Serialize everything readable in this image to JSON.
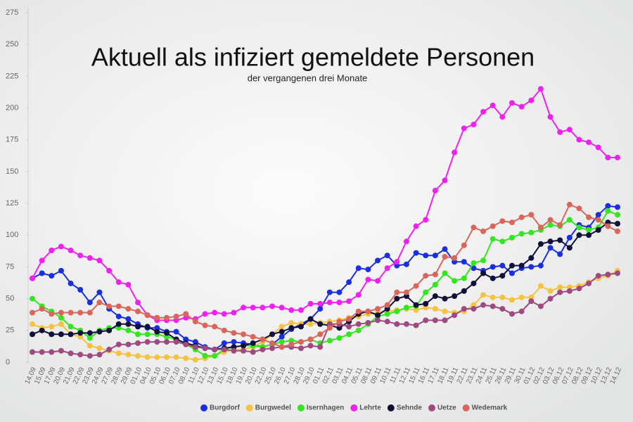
{
  "chart_data": {
    "type": "line",
    "title": "Aktuell als infiziert gemeldete Personen",
    "subtitle": "der vergangenen drei Monate",
    "categories": [
      "14.09",
      "15.09",
      "17.09",
      "20.09",
      "21.09",
      "22.09",
      "23.09",
      "24.09",
      "27.09",
      "28.09",
      "29.09",
      "01.10",
      "04.10",
      "05.10",
      "06.10",
      "07.10",
      "08.10",
      "11.10",
      "12.10",
      "13.10",
      "15.10",
      "18.10",
      "19.10",
      "20.10",
      "22.10",
      "25.10",
      "26.10",
      "27.10",
      "28.10",
      "29.10",
      "01.11",
      "02.11",
      "03.11",
      "04.11",
      "05.11",
      "08.11",
      "09.11",
      "10.11",
      "11.11",
      "12.11",
      "15.11",
      "16.11",
      "17.11",
      "18.11",
      "19.11",
      "22.11",
      "23.11",
      "24.11",
      "25.11",
      "26.11",
      "29.11",
      "30.11",
      "01.12",
      "02.12",
      "03.12",
      "06.12",
      "07.12",
      "08.12",
      "09.12",
      "10.12",
      "13.12",
      "14.12"
    ],
    "series": [
      {
        "name": "Burgdorf",
        "color": "#1a2fe0",
        "values": [
          66,
          70,
          68,
          72,
          62,
          57,
          47,
          55,
          42,
          36,
          34,
          30,
          27,
          27,
          24,
          24,
          18,
          16,
          12,
          10,
          15,
          16,
          15,
          14,
          12,
          14,
          20,
          26,
          30,
          34,
          42,
          55,
          55,
          63,
          74,
          73,
          80,
          84,
          76,
          77,
          86,
          84,
          84,
          89,
          79,
          79,
          74,
          72,
          75,
          76,
          70,
          74,
          75,
          76,
          90,
          85,
          98,
          108,
          106,
          116,
          123,
          122
        ]
      },
      {
        "name": "Burgwedel",
        "color": "#f5c242",
        "values": [
          30,
          27,
          28,
          30,
          22,
          20,
          13,
          11,
          9,
          7,
          6,
          5,
          4,
          4,
          4,
          4,
          3,
          2,
          3,
          5,
          8,
          10,
          10,
          12,
          16,
          22,
          28,
          31,
          30,
          30,
          31,
          32,
          33,
          35,
          36,
          38,
          39,
          40,
          41,
          42,
          41,
          43,
          42,
          40,
          39,
          40,
          45,
          53,
          51,
          51,
          49,
          51,
          51,
          60,
          56,
          59,
          59,
          60,
          63,
          66,
          68,
          72
        ]
      },
      {
        "name": "Isernhagen",
        "color": "#33e61f",
        "values": [
          50,
          44,
          40,
          35,
          28,
          25,
          19,
          25,
          27,
          27,
          25,
          22,
          22,
          22,
          20,
          18,
          14,
          10,
          5,
          5,
          10,
          12,
          13,
          13,
          12,
          14,
          16,
          17,
          16,
          18,
          15,
          17,
          19,
          22,
          25,
          30,
          36,
          38,
          40,
          43,
          44,
          55,
          61,
          70,
          64,
          66,
          78,
          80,
          97,
          95,
          98,
          101,
          102,
          104,
          108,
          107,
          112,
          106,
          104,
          106,
          119,
          116
        ]
      },
      {
        "name": "Lehrte",
        "color": "#f020f0",
        "values": [
          66,
          80,
          88,
          91,
          88,
          84,
          82,
          80,
          72,
          63,
          61,
          47,
          37,
          33,
          33,
          33,
          35,
          34,
          38,
          39,
          38,
          39,
          43,
          43,
          43,
          44,
          43,
          41,
          41,
          46,
          46,
          47,
          47,
          48,
          53,
          65,
          64,
          74,
          79,
          95,
          107,
          112,
          135,
          143,
          165,
          184,
          187,
          197,
          202,
          193,
          204,
          201,
          206,
          215,
          193,
          181,
          183,
          175,
          173,
          169,
          161,
          161
        ]
      },
      {
        "name": "Sehnde",
        "color": "#10103a",
        "values": [
          22,
          25,
          22,
          22,
          22,
          23,
          23,
          24,
          25,
          30,
          30,
          28,
          28,
          24,
          23,
          18,
          15,
          13,
          11,
          10,
          11,
          12,
          13,
          15,
          18,
          22,
          24,
          27,
          28,
          34,
          30,
          29,
          27,
          32,
          38,
          40,
          37,
          42,
          50,
          52,
          45,
          46,
          52,
          50,
          52,
          56,
          62,
          70,
          66,
          68,
          76,
          76,
          82,
          93,
          95,
          96,
          90,
          100,
          100,
          104,
          110,
          109
        ]
      },
      {
        "name": "Uetze",
        "color": "#9e4a80",
        "values": [
          8,
          8,
          8,
          9,
          7,
          6,
          5,
          6,
          10,
          14,
          14,
          15,
          16,
          16,
          16,
          16,
          14,
          12,
          11,
          10,
          10,
          9,
          9,
          8,
          10,
          11,
          12,
          12,
          11,
          13,
          12,
          30,
          30,
          28,
          30,
          31,
          33,
          32,
          30,
          30,
          29,
          33,
          33,
          33,
          37,
          42,
          42,
          45,
          44,
          42,
          38,
          40,
          48,
          44,
          50,
          55,
          56,
          58,
          62,
          68,
          69,
          70
        ]
      },
      {
        "name": "Wedemark",
        "color": "#d9665a",
        "values": [
          39,
          42,
          38,
          39,
          39,
          39,
          39,
          47,
          44,
          44,
          42,
          40,
          37,
          35,
          35,
          36,
          38,
          32,
          29,
          28,
          25,
          23,
          22,
          20,
          18,
          15,
          12,
          14,
          16,
          18,
          22,
          27,
          32,
          34,
          40,
          40,
          42,
          45,
          55,
          55,
          60,
          68,
          69,
          83,
          82,
          92,
          106,
          103,
          107,
          111,
          110,
          114,
          116,
          106,
          112,
          108,
          124,
          121,
          114,
          112,
          107,
          103
        ]
      }
    ],
    "ylim": [
      0,
      275
    ],
    "yticks": [
      0,
      25,
      50,
      75,
      100,
      125,
      150,
      175,
      200,
      225,
      250,
      275
    ],
    "grid": false,
    "legend": "bottom"
  }
}
